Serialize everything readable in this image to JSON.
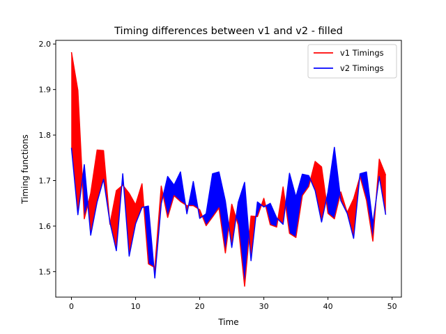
{
  "chart_data": {
    "type": "line",
    "title": "Timing differences between v1 and v2 - filled",
    "xlabel": "Time",
    "ylabel": "Timing functions",
    "xlim": [
      -2.45,
      51.45
    ],
    "ylim": [
      1.444,
      2.008
    ],
    "xticks": [
      0,
      10,
      20,
      30,
      40,
      50
    ],
    "yticks": [
      1.5,
      1.6,
      1.7,
      1.8,
      1.9,
      2.0
    ],
    "grid": false,
    "legend_position": "top-right",
    "fill_between": {
      "v1_greater_color": "#ff0000",
      "v2_greater_color": "#0000ff"
    },
    "x": [
      0,
      1,
      2,
      3,
      4,
      5,
      6,
      7,
      8,
      9,
      10,
      11,
      12,
      13,
      14,
      15,
      16,
      17,
      18,
      19,
      20,
      21,
      22,
      23,
      24,
      25,
      26,
      27,
      28,
      29,
      30,
      31,
      32,
      33,
      34,
      35,
      36,
      37,
      38,
      39,
      40,
      41,
      42,
      43,
      44,
      45,
      46,
      47,
      48,
      49
    ],
    "series": [
      {
        "name": "v1 Timings",
        "color": "#ff0000",
        "values": [
          1.982,
          1.898,
          1.616,
          1.672,
          1.767,
          1.766,
          1.604,
          1.678,
          1.69,
          1.672,
          1.647,
          1.693,
          1.517,
          1.509,
          1.688,
          1.619,
          1.667,
          1.654,
          1.645,
          1.645,
          1.636,
          1.601,
          1.62,
          1.64,
          1.541,
          1.648,
          1.603,
          1.468,
          1.622,
          1.621,
          1.661,
          1.603,
          1.598,
          1.686,
          1.584,
          1.575,
          1.667,
          1.687,
          1.742,
          1.73,
          1.628,
          1.616,
          1.675,
          1.63,
          1.66,
          1.709,
          1.657,
          1.567,
          1.747,
          1.712
        ]
      },
      {
        "name": "v2 Timings",
        "color": "#0000ff",
        "values": [
          1.772,
          1.625,
          1.735,
          1.58,
          1.653,
          1.703,
          1.608,
          1.546,
          1.715,
          1.534,
          1.605,
          1.641,
          1.644,
          1.486,
          1.649,
          1.709,
          1.69,
          1.719,
          1.627,
          1.698,
          1.617,
          1.627,
          1.715,
          1.719,
          1.655,
          1.553,
          1.652,
          1.696,
          1.524,
          1.653,
          1.642,
          1.65,
          1.618,
          1.604,
          1.716,
          1.664,
          1.714,
          1.711,
          1.678,
          1.609,
          1.675,
          1.773,
          1.656,
          1.628,
          1.573,
          1.715,
          1.719,
          1.605,
          1.709,
          1.625
        ]
      }
    ]
  }
}
